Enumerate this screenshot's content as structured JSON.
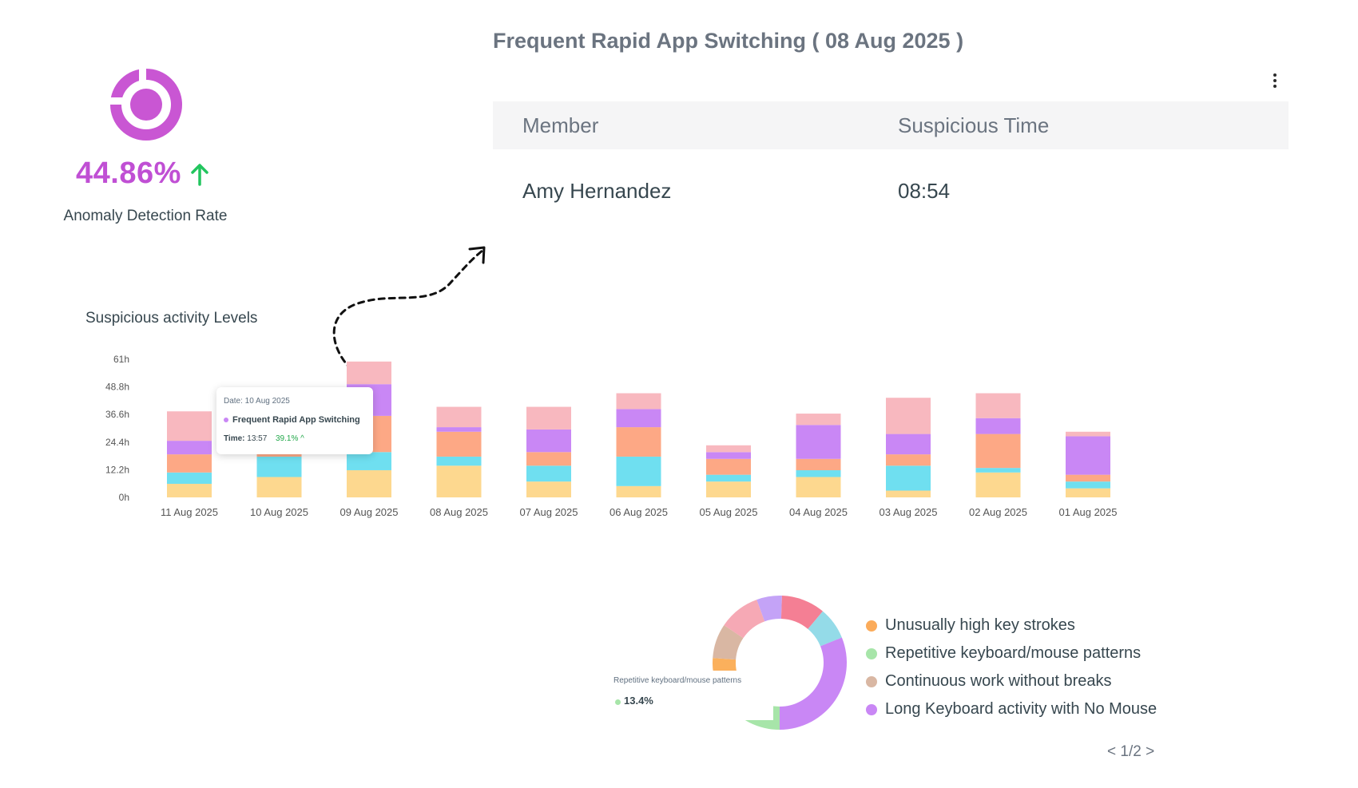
{
  "kpi": {
    "value": "44.86%",
    "label": "Anomaly Detection Rate",
    "trend": "up",
    "value_color": "#c04fd4",
    "trend_color": "#22c55e"
  },
  "panel": {
    "title": "Frequent Rapid App Switching ( 08 Aug 2025 )",
    "columns": [
      "Member",
      "Suspicious Time"
    ],
    "rows": [
      {
        "member": "Amy Hernandez",
        "time": "08:54"
      }
    ]
  },
  "activity": {
    "title": "Suspicious activity Levels"
  },
  "tooltip": {
    "date": "Date: 10 Aug 2025",
    "series": "Frequent Rapid App Switching",
    "time_label": "Time:",
    "time_value": "13:57",
    "percent": "39.1% ^"
  },
  "chart_data": [
    {
      "type": "bar",
      "stacked": true,
      "title": "Suspicious activity Levels",
      "y_ticks": [
        "0h",
        "12.2h",
        "24.4h",
        "36.6h",
        "48.8h",
        "61h"
      ],
      "ylim": [
        0,
        61
      ],
      "grid": false,
      "categories": [
        "11 Aug 2025",
        "10 Aug 2025",
        "09 Aug 2025",
        "08 Aug 2025",
        "07 Aug 2025",
        "06 Aug 2025",
        "05 Aug 2025",
        "04 Aug 2025",
        "03 Aug 2025",
        "02 Aug 2025",
        "01 Aug 2025"
      ],
      "series": [
        {
          "color": "#fdd88f",
          "values": [
            6.0,
            9.0,
            12.0,
            14.0,
            7.0,
            5.0,
            7.0,
            9.0,
            3.0,
            11.0,
            4.0
          ]
        },
        {
          "color": "#6fdff0",
          "values": [
            5.0,
            9.0,
            8.0,
            4.0,
            7.0,
            13.0,
            3.0,
            3.0,
            11.0,
            2.0,
            3.0
          ]
        },
        {
          "color": "#fda885",
          "values": [
            8.0,
            5.0,
            16.0,
            11.0,
            6.0,
            13.0,
            7.0,
            5.0,
            5.0,
            15.0,
            3.0
          ]
        },
        {
          "color": "#c987f5",
          "values": [
            6.0,
            7.0,
            14.0,
            2.0,
            10.0,
            8.0,
            3.0,
            15.0,
            9.0,
            7.0,
            17.0
          ]
        },
        {
          "color": "#f8b8bf",
          "values": [
            13.0,
            8.0,
            10.0,
            9.0,
            10.0,
            7.0,
            3.0,
            5.0,
            16.0,
            11.0,
            2.0
          ]
        }
      ]
    },
    {
      "type": "pie",
      "donut": true,
      "slices": [
        {
          "name": "Unusually high key strokes",
          "color": "#fbb05c",
          "value": 8.5
        },
        {
          "name": "Continuous work without breaks",
          "color": "#d9b7a3",
          "value": 7.5
        },
        {
          "name": "",
          "color": "#f6a9b5",
          "value": 9.0
        },
        {
          "name": "",
          "color": "#c4a3f7",
          "value": 5.5
        },
        {
          "name": "",
          "color": "#f47f94",
          "value": 9.5
        },
        {
          "name": "",
          "color": "#94dbe8",
          "value": 7.0
        },
        {
          "name": "Long Keyboard activity with No Mouse",
          "color": "#c987f5",
          "value": 28.0
        },
        {
          "name": "Repetitive keyboard/mouse patterns",
          "color": "#a7e5a9",
          "value": 13.4
        },
        {
          "name": "",
          "color": "#fbb05c",
          "value": 1.6
        }
      ]
    }
  ],
  "donut_tooltip": {
    "label": "Repetitive keyboard/mouse patterns",
    "value": "13.4%"
  },
  "legend": [
    {
      "label": "Unusually high key strokes",
      "color": "#fbab5a"
    },
    {
      "label": "Repetitive keyboard/mouse patterns",
      "color": "#a7e5a9"
    },
    {
      "label": "Continuous work without breaks",
      "color": "#d9b7a3"
    },
    {
      "label": "Long Keyboard activity with No Mouse",
      "color": "#c987f5"
    }
  ],
  "pager": "< 1/2 >",
  "icons": {
    "kpi": "donut-icon",
    "trend": "arrow-up-icon",
    "menu": "more-vertical-icon"
  }
}
